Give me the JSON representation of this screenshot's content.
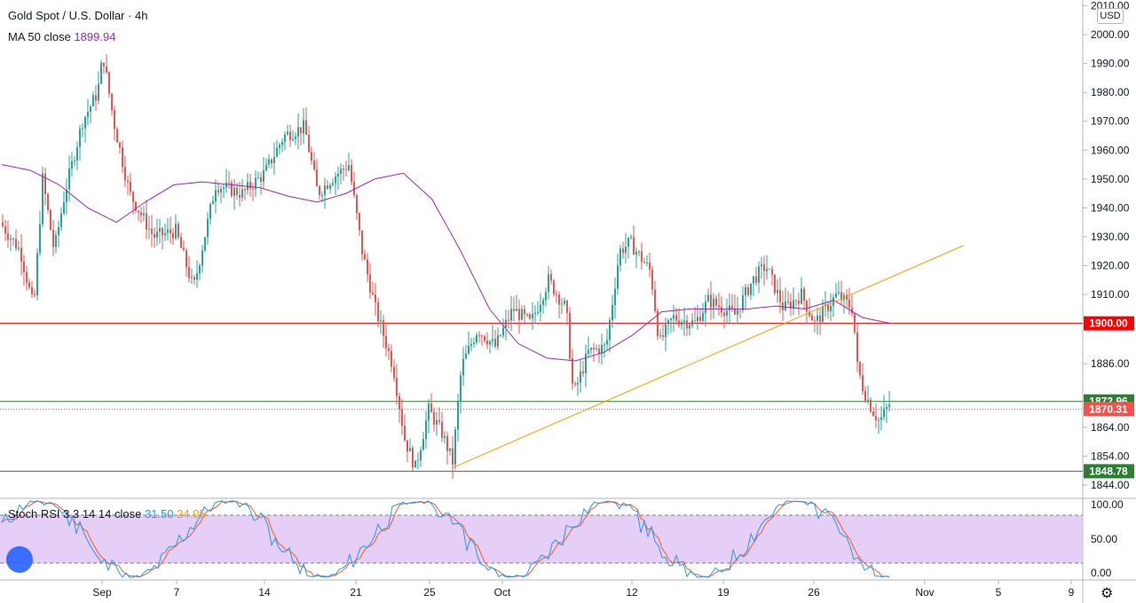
{
  "header": {
    "symbol_title": "Gold Spot / U.S. Dollar · 4h",
    "ma_label": "MA 50 close",
    "ma_value": "1899.94",
    "currency_badge": "USD"
  },
  "stoch": {
    "label": "Stoch RSI 3 3 14 14 close",
    "k_value": "31.50",
    "d_value": "24.05",
    "ticks": [
      "100.00",
      "50.00",
      "0.00"
    ]
  },
  "colors": {
    "up": "#26a69a",
    "down": "#ef5350",
    "ma": "#9c27b0",
    "trend": "#ff9800",
    "resistance": "#ff0000",
    "support": "#2e7d32",
    "stoch_k": "#2196f3",
    "stoch_d": "#ff5722",
    "stoch_band": "#e1c7f5"
  },
  "price_axis": {
    "ticks": [
      "2010.00",
      "2000.00",
      "1990.00",
      "1980.00",
      "1970.00",
      "1960.00",
      "1950.00",
      "1940.00",
      "1930.00",
      "1920.00",
      "1910.00",
      "1886.00",
      "1864.00",
      "1854.00",
      "1844.00"
    ],
    "labels": [
      {
        "text": "1900.00",
        "value": 1900.0,
        "bg": "#ff0000"
      },
      {
        "text": "1872.96",
        "value": 1872.96,
        "bg": "#2e7d32"
      },
      {
        "text": "1870.31",
        "value": 1870.31,
        "bg": "#ef5350"
      },
      {
        "text": "1848.78",
        "value": 1848.78,
        "bg": "#2e7d32"
      }
    ]
  },
  "time_axis": {
    "labels": [
      "Sep",
      "7",
      "14",
      "21",
      "25",
      "Oct",
      "12",
      "19",
      "26",
      "Nov",
      "5",
      "9"
    ]
  },
  "chart_data": {
    "type": "line",
    "title": "Gold Spot / U.S. Dollar · 4h",
    "price_ylim": [
      1840,
      2012
    ],
    "x_labels": [
      "Sep",
      "7",
      "14",
      "21",
      "25",
      "Oct",
      "12",
      "19",
      "26",
      "Nov",
      "5",
      "9"
    ],
    "series": [
      {
        "name": "MA 50 close",
        "values": [
          1955,
          1953,
          1948,
          1940,
          1935,
          1942,
          1948,
          1949,
          1948,
          1947,
          1944,
          1942,
          1945,
          1950,
          1952,
          1943,
          1925,
          1905,
          1893,
          1888,
          1887,
          1890,
          1896,
          1904,
          1905,
          1905,
          1905,
          1906,
          1905,
          1908,
          1902,
          1900
        ]
      }
    ],
    "horizontal_lines": [
      {
        "value": 1900.0,
        "color": "#ff0000"
      },
      {
        "value": 1872.96,
        "color": "#2e7d32"
      },
      {
        "value": 1848.78,
        "color": "#2e7d32"
      }
    ],
    "trend_line": {
      "from": 1850,
      "to": 1927
    },
    "stoch_ylim": [
      0,
      100
    ],
    "stoch_band": [
      20,
      80
    ]
  }
}
